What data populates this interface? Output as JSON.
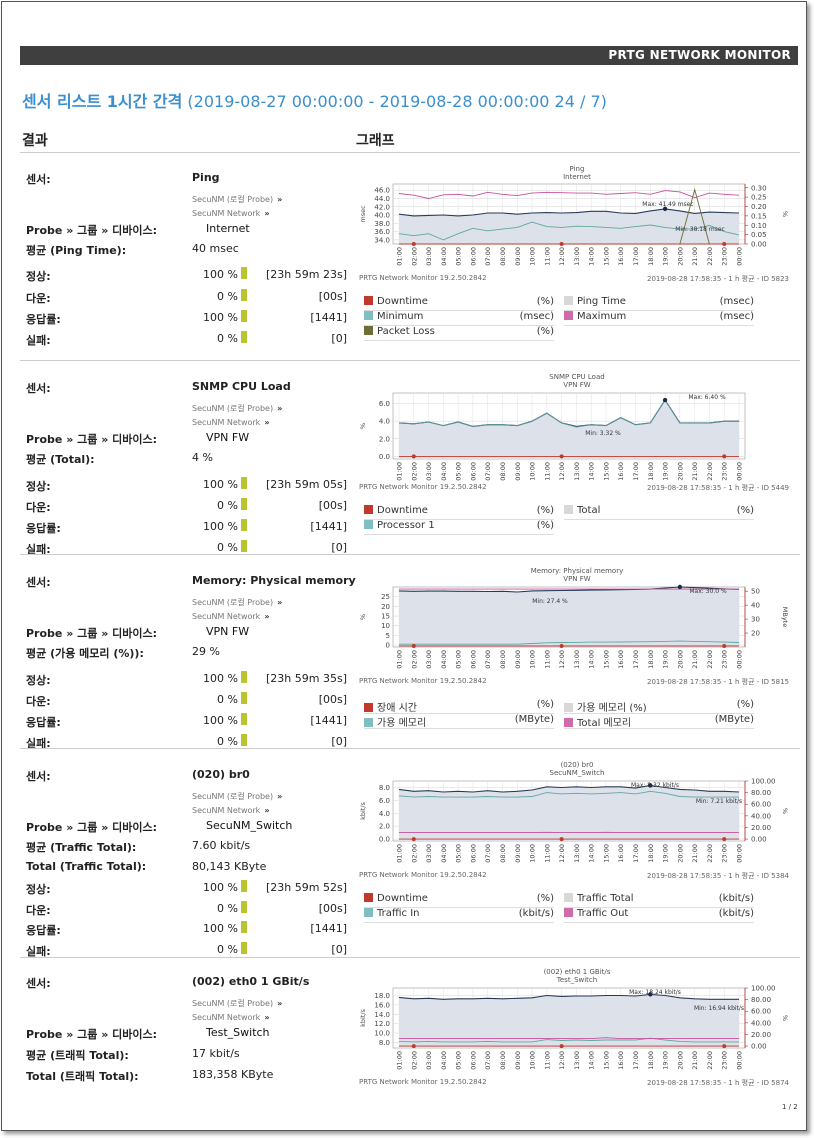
{
  "header": {
    "brand": "PRTG NETWORK MONITOR"
  },
  "report": {
    "title_main": "센서 리스트 1시간 간격",
    "title_range": "(2019-08-27 00:00:00 - 2019-08-28 00:00:00 24 / 7)"
  },
  "columns": {
    "results": "결과",
    "graph": "그래프"
  },
  "labels": {
    "sensor": "센서:",
    "probe_group_device": "Probe » 그룹 » 디바이스:",
    "up": "정상:",
    "down": "다운:",
    "coverage": "응답률:",
    "fail": "실패:",
    "arrow": "»"
  },
  "x_ticks": [
    "01:00",
    "02:00",
    "03:00",
    "04:00",
    "05:00",
    "06:00",
    "07:00",
    "08:00",
    "09:00",
    "10:00",
    "11:00",
    "12:00",
    "13:00",
    "14:00",
    "15:00",
    "16:00",
    "17:00",
    "18:00",
    "19:00",
    "20:00",
    "21:00",
    "22:00",
    "23:00",
    "00:00"
  ],
  "sensors": [
    {
      "name": "Ping",
      "probe": "SecuNM (로컬 Probe)",
      "group": "SecuNM Network",
      "device": "Internet",
      "avg_label": "평균 (Ping Time):",
      "avg_value": "40 msec",
      "stats": [
        {
          "pct": "100 %",
          "dur": "[23h 59m 23s]"
        },
        {
          "pct": "0 %",
          "dur": "[00s]"
        },
        {
          "pct": "100 %",
          "dur": "[1441]"
        },
        {
          "pct": "0 %",
          "dur": "[0]"
        }
      ],
      "chart_title": "Ping",
      "chart_sub": "Internet",
      "footer_left": "PRTG Network Monitor 19.2.50.2842",
      "footer_right": "2019-08-28 17:58:35 - 1 h 평균 - ID 5823",
      "legend": [
        {
          "name": "Downtime",
          "unit": "(%)",
          "color": "#c0392b"
        },
        {
          "name": "Ping Time",
          "unit": "(msec)",
          "color": "#d8d8d8"
        },
        {
          "name": "Minimum",
          "unit": "(msec)",
          "color": "#7fbfbf"
        },
        {
          "name": "Maximum",
          "unit": "(msec)",
          "color": "#d06aa8"
        },
        {
          "name": "Packet Loss",
          "unit": "(%)",
          "color": "#6d6d3a"
        }
      ]
    },
    {
      "name": "SNMP CPU Load",
      "probe": "SecuNM (로컬 Probe)",
      "group": "SecuNM Network",
      "device": "VPN FW",
      "avg_label": "평균 (Total):",
      "avg_value": "4 %",
      "stats": [
        {
          "pct": "100 %",
          "dur": "[23h 59m 05s]"
        },
        {
          "pct": "0 %",
          "dur": "[00s]"
        },
        {
          "pct": "100 %",
          "dur": "[1441]"
        },
        {
          "pct": "0 %",
          "dur": "[0]"
        }
      ],
      "chart_title": "SNMP CPU Load",
      "chart_sub": "VPN FW",
      "footer_left": "PRTG Network Monitor 19.2.50.2842",
      "footer_right": "2019-08-28 17:58:35 - 1 h 평균 - ID 5449",
      "legend": [
        {
          "name": "Downtime",
          "unit": "(%)",
          "color": "#c0392b"
        },
        {
          "name": "Total",
          "unit": "(%)",
          "color": "#d8d8d8"
        },
        {
          "name": "Processor 1",
          "unit": "(%)",
          "color": "#7fbfbf"
        }
      ]
    },
    {
      "name": "Memory: Physical memory",
      "probe": "SecuNM (로컬 Probe)",
      "group": "SecuNM Network",
      "device": "VPN FW",
      "avg_label": "평균 (가용 메모리 (%)):",
      "avg_value": "29 %",
      "stats": [
        {
          "pct": "100 %",
          "dur": "[23h 59m 35s]"
        },
        {
          "pct": "0 %",
          "dur": "[00s]"
        },
        {
          "pct": "100 %",
          "dur": "[1441]"
        },
        {
          "pct": "0 %",
          "dur": "[0]"
        }
      ],
      "chart_title": "Memory: Physical memory",
      "chart_sub": "VPN FW",
      "footer_left": "PRTG Network Monitor 19.2.50.2842",
      "footer_right": "2019-08-28 17:58:35 - 1 h 평균 - ID 5815",
      "legend": [
        {
          "name": "장애 시간",
          "unit": "(%)",
          "color": "#c0392b"
        },
        {
          "name": "가용 메모리 (%)",
          "unit": "(%)",
          "color": "#d8d8d8"
        },
        {
          "name": "가용 메모리",
          "unit": "(MByte)",
          "color": "#7fbfbf"
        },
        {
          "name": "Total 메모리",
          "unit": "(MByte)",
          "color": "#d06aa8"
        }
      ]
    },
    {
      "name": "(020) br0",
      "probe": "SecuNM (로컬 Probe)",
      "group": "SecuNM Network",
      "device": "SecuNM_Switch",
      "avg_label": "평균 (Traffic Total):",
      "avg_value": "7.60 kbit/s",
      "total_label": "Total (Traffic Total):",
      "total_value": "80,143 KByte",
      "stats": [
        {
          "pct": "100 %",
          "dur": "[23h 59m 52s]"
        },
        {
          "pct": "0 %",
          "dur": "[00s]"
        },
        {
          "pct": "100 %",
          "dur": "[1441]"
        },
        {
          "pct": "0 %",
          "dur": "[0]"
        }
      ],
      "chart_title": "(020) br0",
      "chart_sub": "SecuNM_Switch",
      "footer_left": "PRTG Network Monitor 19.2.50.2842",
      "footer_right": "2019-08-28 17:58:35 - 1 h 평균 - ID 5384",
      "legend": [
        {
          "name": "Downtime",
          "unit": "(%)",
          "color": "#c0392b"
        },
        {
          "name": "Traffic Total",
          "unit": "(kbit/s)",
          "color": "#d8d8d8"
        },
        {
          "name": "Traffic In",
          "unit": "(kbit/s)",
          "color": "#7fbfbf"
        },
        {
          "name": "Traffic Out",
          "unit": "(kbit/s)",
          "color": "#d06aa8"
        }
      ]
    },
    {
      "name": "(002) eth0 1 GBit/s",
      "probe": "SecuNM (로컬 Probe)",
      "group": "SecuNM Network",
      "device": "Test_Switch",
      "avg_label": "평균 (트래픽 Total):",
      "avg_value": "17 kbit/s",
      "total_label": "Total (트래픽 Total):",
      "total_value": "183,358 KByte",
      "chart_title": "(002) eth0 1 GBit/s",
      "chart_sub": "Test_Switch",
      "footer_left": "PRTG Network Monitor 19.2.50.2842",
      "footer_right": "2019-08-28 17:58:35 - 1 h 평균 - ID 5874"
    }
  ],
  "chart_data": [
    {
      "type": "line",
      "title": "Ping",
      "subtitle": "Internet",
      "ylabel": "msec",
      "y2label": "%",
      "yticks": [
        "46.0",
        "44.0",
        "42.0",
        "40.0",
        "38.0",
        "36.0",
        "34.0"
      ],
      "y2ticks": [
        "0.30",
        "0.25",
        "0.20",
        "0.15",
        "0.10",
        "0.05",
        "0.00"
      ],
      "ylim": [
        33,
        47.5
      ],
      "y2lim": [
        0,
        0.32
      ],
      "annotations": [
        "Max: 41.49 msec",
        "Min: 38.18 msec"
      ],
      "series": [
        {
          "name": "Maximum",
          "axis": "y",
          "values": [
            45.2,
            44.8,
            44.0,
            44.9,
            45.0,
            44.6,
            45.5,
            45.0,
            44.7,
            45.3,
            45.5,
            45.4,
            45.3,
            45.3,
            45.0,
            45.2,
            45.4,
            45.0,
            45.9,
            45.6,
            44.2,
            45.3,
            45.0,
            44.8
          ]
        },
        {
          "name": "Ping Time",
          "axis": "y",
          "values": [
            40.2,
            39.8,
            39.9,
            40.0,
            39.8,
            40.0,
            40.5,
            40.5,
            40.2,
            40.5,
            40.6,
            40.5,
            40.6,
            40.9,
            40.9,
            40.5,
            40.4,
            41.0,
            41.49,
            41.0,
            40.4,
            40.7,
            40.6,
            40.5
          ]
        },
        {
          "name": "Minimum",
          "axis": "y",
          "values": [
            35.5,
            35.0,
            35.5,
            34.0,
            35.5,
            36.8,
            36.2,
            36.6,
            37.0,
            38.3,
            37.2,
            37.0,
            37.3,
            37.2,
            37.0,
            36.8,
            37.2,
            37.6,
            37.0,
            36.6,
            36.6,
            37.5,
            36.0,
            35.2
          ]
        },
        {
          "name": "Packet Loss",
          "axis": "y2",
          "values": [
            0,
            0,
            0,
            0,
            0,
            0,
            0,
            0,
            0,
            0,
            0,
            0,
            0,
            0,
            0,
            0,
            0,
            0,
            0,
            0,
            0.29,
            0,
            0,
            0
          ]
        },
        {
          "name": "Downtime",
          "axis": "y2",
          "values": [
            0,
            0,
            0,
            0,
            0,
            0,
            0,
            0,
            0,
            0,
            0,
            0,
            0,
            0,
            0,
            0,
            0,
            0,
            0,
            0,
            0,
            0,
            0,
            0
          ]
        }
      ]
    },
    {
      "type": "line",
      "title": "SNMP CPU Load",
      "subtitle": "VPN FW",
      "ylabel": "%",
      "yticks": [
        "6.0",
        "4.0",
        "2.0",
        "0.0"
      ],
      "ylim": [
        -0.3,
        7.2
      ],
      "annotations": [
        "Max: 6.40 %",
        "Min: 3.32 %"
      ],
      "series": [
        {
          "name": "Total",
          "axis": "y",
          "values": [
            3.8,
            3.7,
            3.9,
            3.5,
            3.9,
            3.4,
            3.6,
            3.6,
            3.5,
            4.0,
            4.9,
            3.8,
            3.4,
            3.6,
            3.5,
            4.4,
            3.6,
            3.8,
            6.4,
            3.8,
            3.8,
            3.8,
            4.0,
            4.0
          ]
        },
        {
          "name": "Processor 1",
          "axis": "y",
          "values": [
            3.8,
            3.7,
            3.9,
            3.5,
            3.9,
            3.4,
            3.6,
            3.6,
            3.5,
            4.0,
            4.9,
            3.8,
            3.32,
            3.6,
            3.5,
            4.4,
            3.6,
            3.8,
            6.4,
            3.8,
            3.8,
            3.8,
            4.0,
            4.0
          ]
        },
        {
          "name": "Downtime",
          "axis": "y",
          "values": [
            0,
            0,
            0,
            0,
            0,
            0,
            0,
            0,
            0,
            0,
            0,
            0,
            0,
            0,
            0,
            0,
            0,
            0,
            0,
            0,
            0,
            0,
            0,
            0
          ]
        }
      ]
    },
    {
      "type": "line",
      "title": "Memory: Physical memory",
      "subtitle": "VPN FW",
      "ylabel": "%",
      "y2label": "MByte",
      "yticks": [
        "25",
        "20",
        "15",
        "10",
        "5",
        "0"
      ],
      "y2ticks": [
        "50",
        "40",
        "30",
        "20"
      ],
      "ylim": [
        -1,
        30
      ],
      "y2lim": [
        10,
        53
      ],
      "annotations": [
        "Max: 30.0 %",
        "Min: 27.4 %"
      ],
      "series": [
        {
          "name": "가용 메모리 (%)",
          "axis": "y",
          "values": [
            28.0,
            27.8,
            27.9,
            27.9,
            27.8,
            27.8,
            27.7,
            27.8,
            27.4,
            28.0,
            28.1,
            28.2,
            28.3,
            28.4,
            28.5,
            28.6,
            28.7,
            28.9,
            29.5,
            30.0,
            29.7,
            29.4,
            29.0,
            28.8
          ]
        },
        {
          "name": "Total 메모리",
          "axis": "y2",
          "values": [
            51.5,
            51.5,
            51.5,
            51.5,
            51.5,
            51.5,
            51.5,
            51.5,
            51.5,
            51.5,
            51.5,
            51.5,
            51.5,
            51.5,
            51.5,
            51.5,
            51.5,
            51.5,
            51.5,
            51.5,
            51.5,
            51.5,
            51.5,
            51.5
          ]
        },
        {
          "name": "가용 메모리",
          "axis": "y2",
          "values": [
            12.0,
            12.0,
            12.0,
            12.0,
            12.0,
            12.0,
            12.0,
            12.0,
            12.0,
            12.5,
            13.0,
            13.2,
            13.3,
            13.5,
            13.5,
            13.6,
            13.7,
            13.8,
            14.0,
            14.2,
            14.0,
            13.8,
            13.5,
            13.2
          ]
        },
        {
          "name": "장애 시간",
          "axis": "y2",
          "values": [
            10.7,
            10.7,
            10.7,
            10.7,
            10.7,
            10.7,
            10.7,
            10.7,
            10.7,
            10.7,
            10.7,
            10.7,
            10.7,
            10.7,
            10.7,
            10.7,
            10.7,
            10.7,
            10.7,
            10.7,
            10.7,
            10.7,
            10.7,
            10.7
          ]
        }
      ]
    },
    {
      "type": "line",
      "title": "(020) br0",
      "subtitle": "SecuNM_Switch",
      "ylabel": "kbit/s",
      "y2label": "%",
      "yticks": [
        "8.0",
        "6.0",
        "4.0",
        "2.0",
        "0.0"
      ],
      "y2ticks": [
        "100.00",
        "80.00",
        "60.00",
        "40.00",
        "20.00",
        "0.00"
      ],
      "ylim": [
        -0.3,
        9.0
      ],
      "y2lim": [
        -3.3,
        100
      ],
      "annotations": [
        "Max: 8.32 kbit/s",
        "Min: 7.21 kbit/s"
      ],
      "series": [
        {
          "name": "Traffic Total",
          "axis": "y",
          "values": [
            7.7,
            7.4,
            7.5,
            7.3,
            7.4,
            7.3,
            7.5,
            7.3,
            7.4,
            7.6,
            8.1,
            8.0,
            8.1,
            8.0,
            8.1,
            8.1,
            7.9,
            8.32,
            8.0,
            7.7,
            7.6,
            7.4,
            7.4,
            7.3
          ]
        },
        {
          "name": "Traffic In",
          "axis": "y",
          "values": [
            6.7,
            6.5,
            6.6,
            6.5,
            6.5,
            6.5,
            6.6,
            6.5,
            6.5,
            6.6,
            7.2,
            7.0,
            7.1,
            7.0,
            7.1,
            7.2,
            7.0,
            7.4,
            7.1,
            6.6,
            6.5,
            6.5,
            6.5,
            6.5
          ]
        },
        {
          "name": "Traffic Out",
          "axis": "y",
          "values": [
            1.0,
            1.0,
            1.0,
            1.0,
            1.0,
            1.0,
            1.0,
            1.0,
            1.0,
            1.0,
            1.05,
            1.0,
            1.0,
            1.0,
            1.05,
            1.0,
            1.0,
            1.0,
            1.0,
            1.0,
            1.0,
            1.0,
            1.0,
            1.0
          ]
        },
        {
          "name": "Downtime",
          "axis": "y2",
          "values": [
            0,
            0,
            0,
            0,
            0,
            0,
            0,
            0,
            0,
            0,
            0,
            0,
            0,
            0,
            0,
            0,
            0,
            0,
            0,
            0,
            0,
            0,
            0,
            0
          ]
        }
      ]
    },
    {
      "type": "line",
      "title": "(002) eth0 1 GBit/s",
      "subtitle": "Test_Switch",
      "ylabel": "kbit/s",
      "y2label": "%",
      "yticks": [
        "18.0",
        "16.0",
        "14.0",
        "12.0",
        "10.0",
        "8.0"
      ],
      "y2ticks": [
        "100.00",
        "80.00",
        "60.00",
        "40.00",
        "20.00",
        "0.00"
      ],
      "ylim": [
        6.8,
        19.6
      ],
      "y2lim": [
        -3.3,
        100
      ],
      "annotations": [
        "Max: 18.24 kbit/s",
        "Min: 16.94 kbit/s"
      ],
      "series": [
        {
          "name": "트래픽 Total",
          "axis": "y",
          "values": [
            17.6,
            17.3,
            17.4,
            17.2,
            17.3,
            17.3,
            17.4,
            17.3,
            17.4,
            17.5,
            18.0,
            17.8,
            17.9,
            17.9,
            18.0,
            18.0,
            17.9,
            18.24,
            18.0,
            17.5,
            17.3,
            17.2,
            17.2,
            17.2
          ]
        },
        {
          "name": "트래픽 In",
          "axis": "y",
          "values": [
            8.2,
            8.1,
            8.2,
            8.1,
            8.1,
            8.1,
            8.2,
            8.1,
            8.1,
            8.1,
            8.6,
            8.4,
            8.5,
            8.4,
            8.5,
            8.5,
            8.5,
            8.9,
            8.5,
            8.2,
            8.1,
            8.1,
            8.1,
            8.1
          ]
        },
        {
          "name": "트래픽 Out",
          "axis": "y",
          "values": [
            8.8,
            8.8,
            8.8,
            8.8,
            8.8,
            8.8,
            8.8,
            8.8,
            8.8,
            8.8,
            8.8,
            8.8,
            8.8,
            8.8,
            9.0,
            8.8,
            8.8,
            8.8,
            8.8,
            8.8,
            8.8,
            8.8,
            8.8,
            8.8
          ]
        },
        {
          "name": "Downtime",
          "axis": "y2",
          "values": [
            0,
            0,
            0,
            0,
            0,
            0,
            0,
            0,
            0,
            0,
            0,
            0,
            0,
            0,
            0,
            0,
            0,
            0,
            0,
            0,
            0,
            0,
            0,
            0
          ]
        }
      ]
    }
  ],
  "page": {
    "number": "1 / 2"
  }
}
